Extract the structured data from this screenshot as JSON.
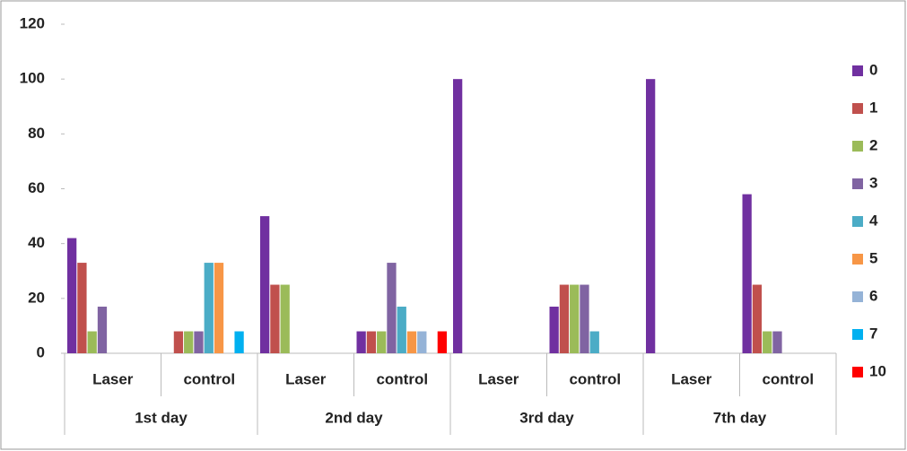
{
  "chart_data": {
    "type": "bar",
    "categories": [
      "Laser",
      "control",
      "Laser",
      "control",
      "Laser",
      "control",
      "Laser",
      "control"
    ],
    "groups": [
      "1st day",
      "2nd day",
      "3rd day",
      "7th day"
    ],
    "series": [
      {
        "name": "0",
        "color": "#7030a0",
        "values": [
          42,
          0,
          50,
          8,
          100,
          17,
          100,
          58
        ]
      },
      {
        "name": "1",
        "color": "#c0504d",
        "values": [
          33,
          8,
          25,
          8,
          0,
          25,
          0,
          25
        ]
      },
      {
        "name": "2",
        "color": "#9bbb59",
        "values": [
          8,
          8,
          25,
          8,
          0,
          25,
          0,
          8
        ]
      },
      {
        "name": "3",
        "color": "#8064a2",
        "values": [
          17,
          8,
          0,
          33,
          0,
          25,
          0,
          8
        ]
      },
      {
        "name": "4",
        "color": "#4bacc6",
        "values": [
          0,
          33,
          0,
          17,
          0,
          8,
          0,
          0
        ]
      },
      {
        "name": "5",
        "color": "#f79646",
        "values": [
          0,
          33,
          0,
          8,
          0,
          0,
          0,
          0
        ]
      },
      {
        "name": "6",
        "color": "#95b3d7",
        "values": [
          0,
          0,
          0,
          8,
          0,
          0,
          0,
          0
        ]
      },
      {
        "name": "7",
        "color": "#00b0f0",
        "values": [
          0,
          8,
          0,
          0,
          0,
          0,
          0,
          0
        ]
      },
      {
        "name": "10",
        "color": "#ff0000",
        "values": [
          0,
          0,
          0,
          8,
          0,
          0,
          0,
          0
        ]
      }
    ],
    "ylim": [
      0,
      120
    ],
    "yticks": [
      0,
      20,
      40,
      60,
      80,
      100,
      120
    ],
    "grid": false,
    "legend": "right"
  }
}
